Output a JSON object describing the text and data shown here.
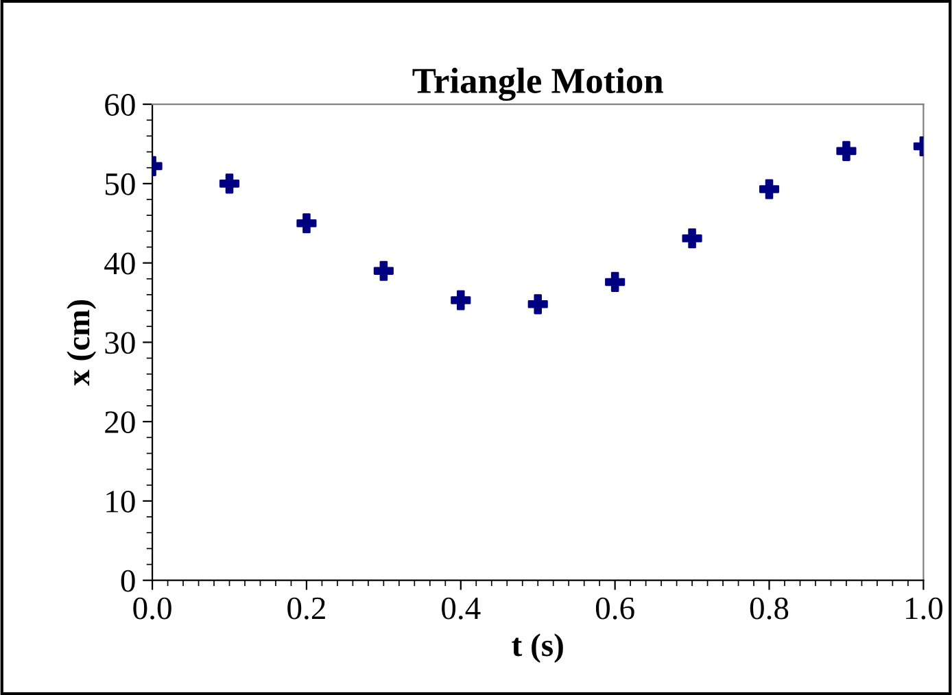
{
  "chart_data": {
    "type": "scatter",
    "title": "Triangle Motion",
    "xlabel": "t (s)",
    "ylabel": "x (cm)",
    "x": [
      0.0,
      0.1,
      0.2,
      0.3,
      0.4,
      0.5,
      0.6,
      0.7,
      0.8,
      0.9,
      1.0
    ],
    "series": [
      {
        "color": "#000080",
        "values": [
          52.2,
          50.0,
          45.0,
          39.0,
          35.3,
          34.8,
          37.6,
          43.1,
          49.3,
          54.1,
          54.7
        ]
      }
    ],
    "xlim": [
      0.0,
      1.0
    ],
    "xticks": [
      {
        "value": 0.0,
        "label": "0.0"
      },
      {
        "value": 0.2,
        "label": "0.2"
      },
      {
        "value": 0.4,
        "label": "0.4"
      },
      {
        "value": 0.6,
        "label": "0.6"
      },
      {
        "value": 0.8,
        "label": "0.8"
      },
      {
        "value": 1.0,
        "label": "1.0"
      }
    ],
    "ylim": [
      0,
      60
    ],
    "yticks": [
      0,
      10,
      20,
      30,
      40,
      50,
      60
    ],
    "grid": false,
    "legend": false,
    "marker": "cross"
  }
}
